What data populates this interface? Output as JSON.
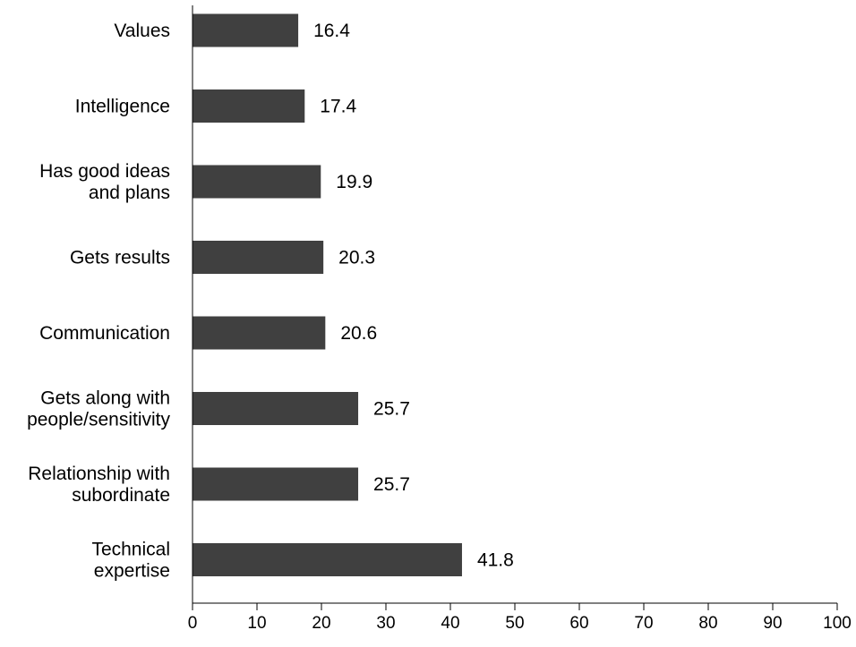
{
  "chart_data": {
    "type": "bar",
    "orientation": "horizontal",
    "categories": [
      [
        "Values"
      ],
      [
        "Intelligence"
      ],
      [
        "Has good ideas",
        "and plans"
      ],
      [
        "Gets results"
      ],
      [
        "Communication"
      ],
      [
        "Gets along with",
        "people/sensitivity"
      ],
      [
        "Relationship with",
        "subordinate"
      ],
      [
        "Technical",
        "expertise"
      ]
    ],
    "values": [
      16.4,
      17.4,
      19.9,
      20.3,
      20.6,
      25.7,
      25.7,
      41.8
    ],
    "value_labels": [
      "16.4",
      "17.4",
      "19.9",
      "20.3",
      "20.6",
      "25.7",
      "25.7",
      "41.8"
    ],
    "xlim": [
      0,
      100
    ],
    "xticks": [
      0,
      10,
      20,
      30,
      40,
      50,
      60,
      70,
      80,
      90,
      100
    ],
    "xtick_labels": [
      "0",
      "10",
      "20",
      "30",
      "40",
      "50",
      "60",
      "70",
      "80",
      "90",
      "100"
    ],
    "grid": false,
    "bar_color": "#404040"
  }
}
